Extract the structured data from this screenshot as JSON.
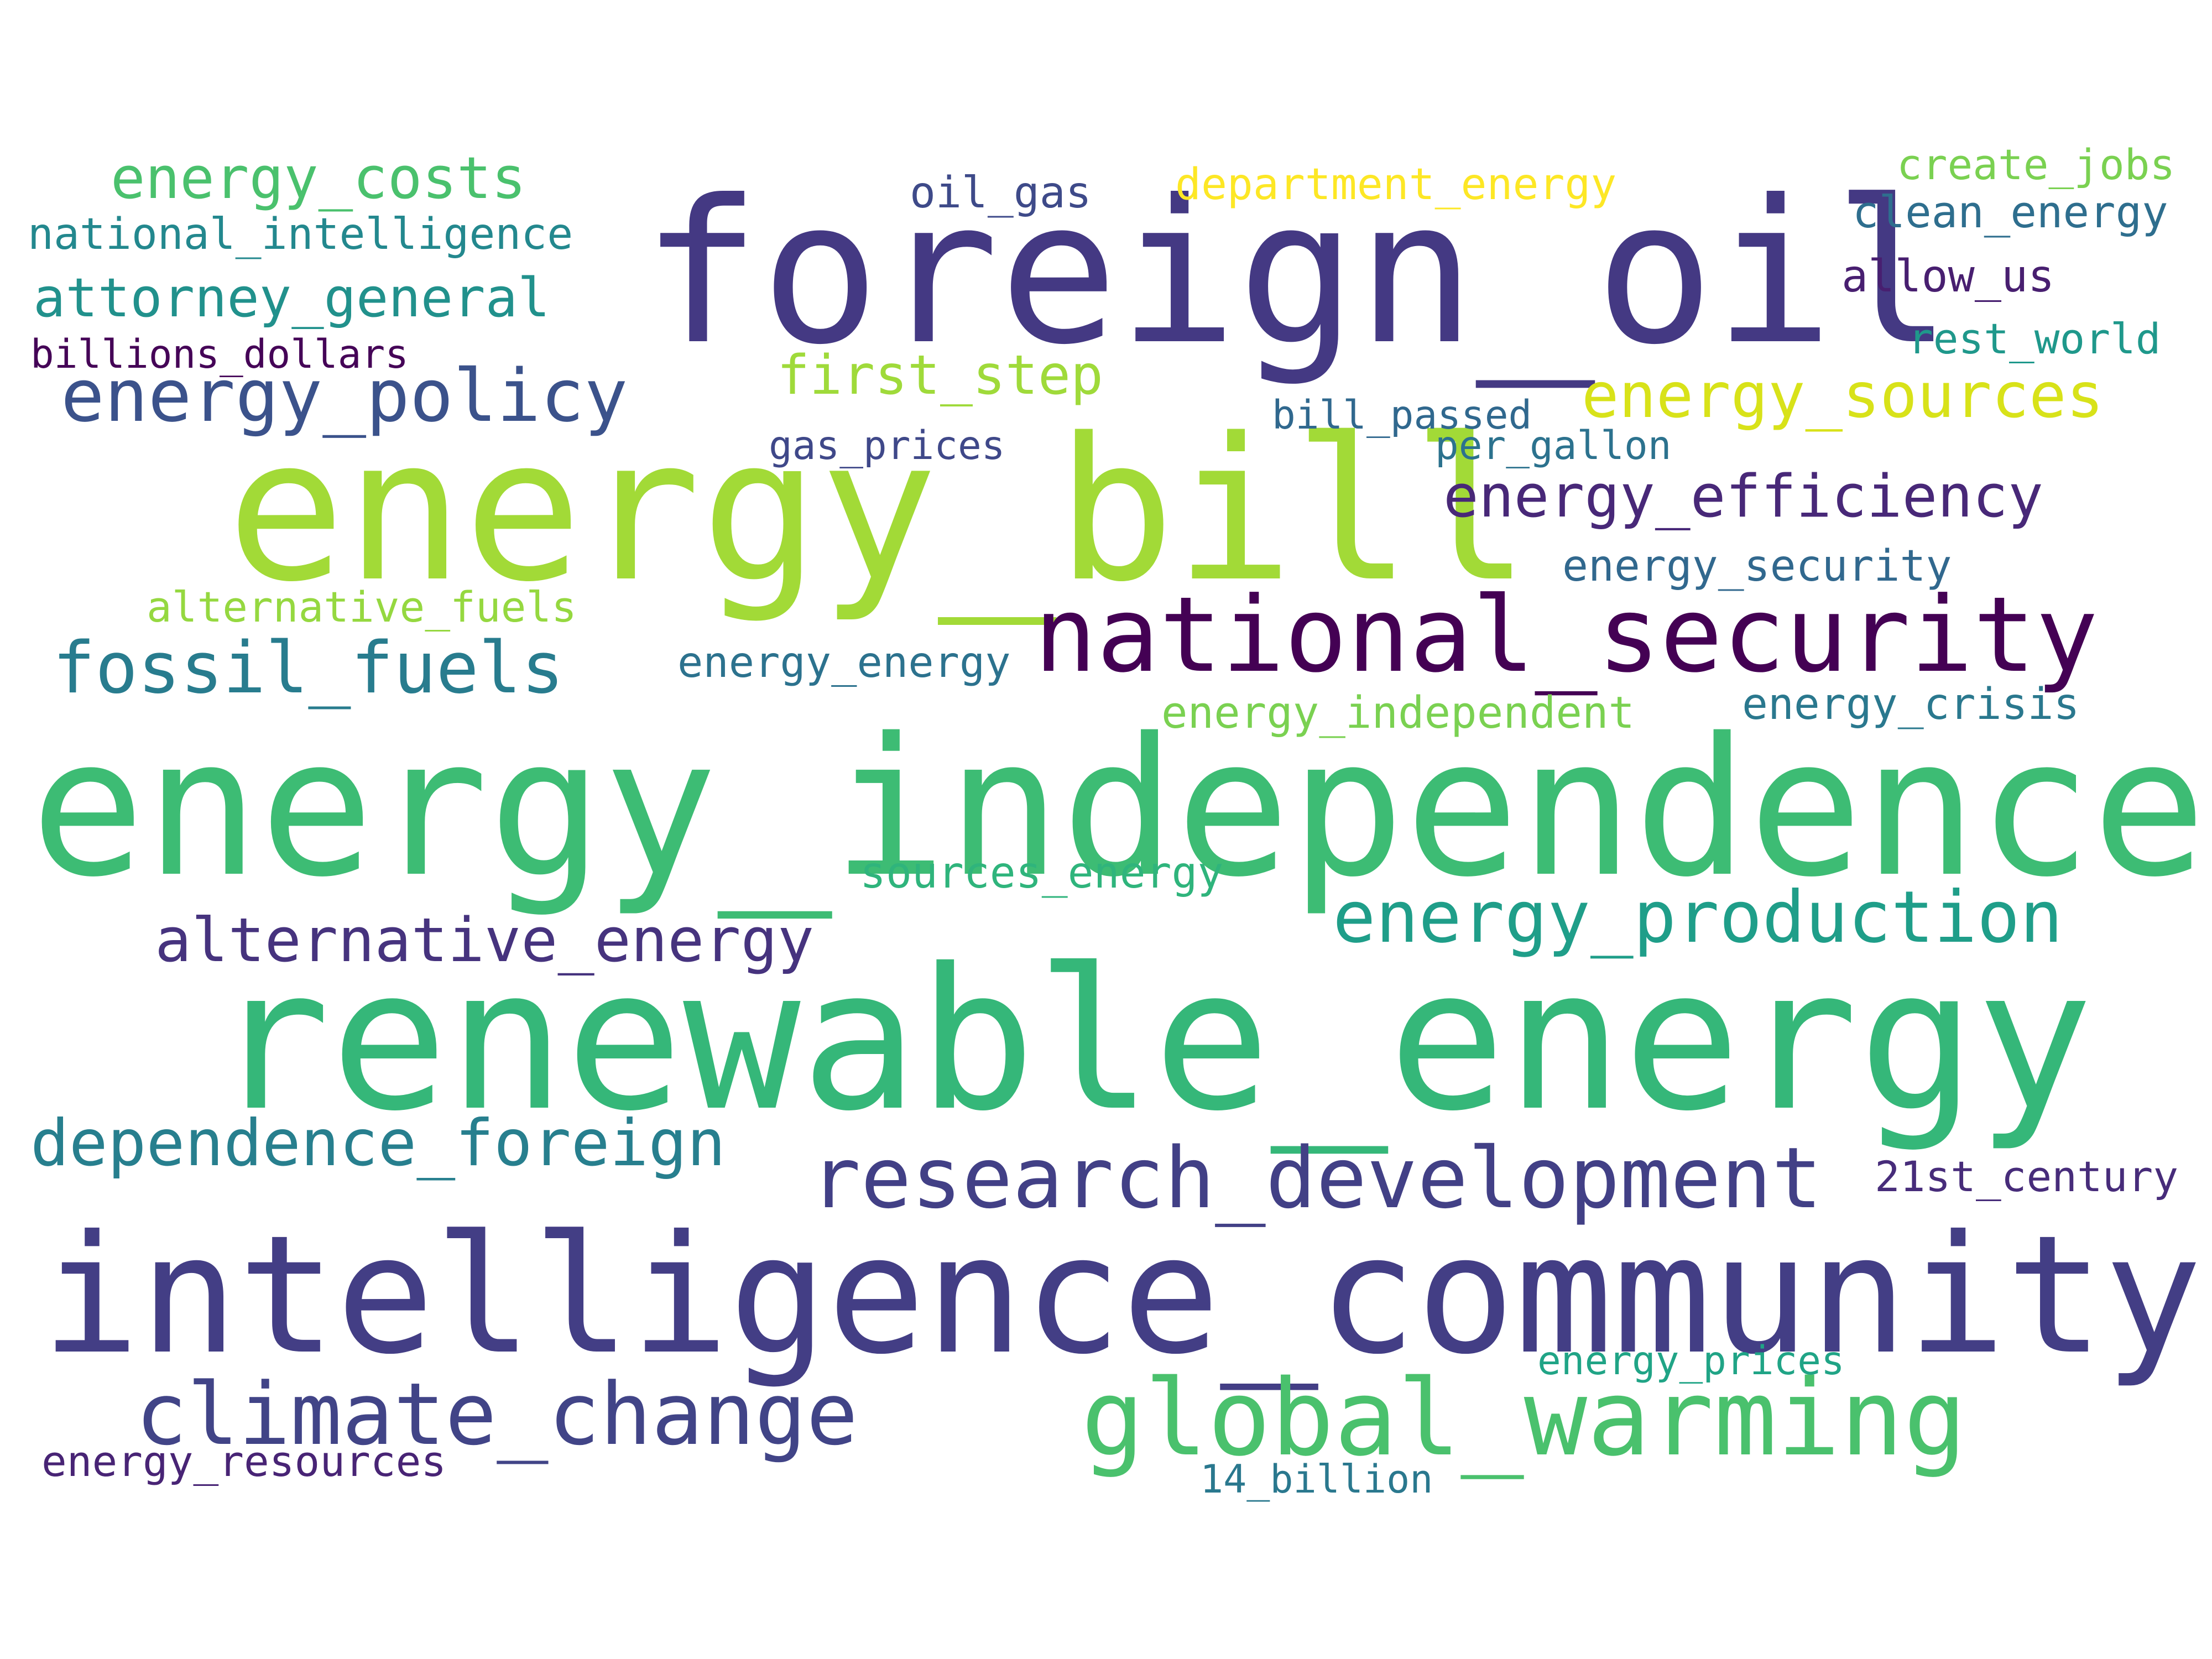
{
  "words": [
    {
      "text": "foreign_oil",
      "color": "#443983"
    },
    {
      "text": "energy_bill",
      "color": "#a2da37"
    },
    {
      "text": "energy_independence",
      "color": "#3dbc74"
    },
    {
      "text": "renewable_energy",
      "color": "#35b779"
    },
    {
      "text": "intelligence_community",
      "color": "#433e85"
    },
    {
      "text": "national_security",
      "color": "#440154"
    },
    {
      "text": "global_warming",
      "color": "#4ac16d"
    },
    {
      "text": "research_development",
      "color": "#424086"
    },
    {
      "text": "climate_change",
      "color": "#414487"
    },
    {
      "text": "energy_production",
      "color": "#1f9e89"
    },
    {
      "text": "energy_policy",
      "color": "#3b528b"
    },
    {
      "text": "fossil_fuels",
      "color": "#287c8e"
    },
    {
      "text": "dependence_foreign",
      "color": "#277f8e"
    },
    {
      "text": "alternative_energy",
      "color": "#46337e"
    },
    {
      "text": "energy_efficiency",
      "color": "#482878"
    },
    {
      "text": "energy_sources",
      "color": "#d8e219"
    },
    {
      "text": "energy_costs",
      "color": "#4ac16d"
    },
    {
      "text": "attorney_general",
      "color": "#21918c"
    },
    {
      "text": "first_step",
      "color": "#9fda3a"
    },
    {
      "text": "department_energy",
      "color": "#fde725"
    },
    {
      "text": "clean_energy",
      "color": "#2e6e8e"
    },
    {
      "text": "allow_us",
      "color": "#481f70"
    },
    {
      "text": "rest_world",
      "color": "#1f988b"
    },
    {
      "text": "create_jobs",
      "color": "#7ad151"
    },
    {
      "text": "oil_gas",
      "color": "#3e4a89"
    },
    {
      "text": "energy_security",
      "color": "#31688e"
    },
    {
      "text": "energy_crisis",
      "color": "#2a788e"
    },
    {
      "text": "energy_independent",
      "color": "#7ad151"
    },
    {
      "text": "energy_energy",
      "color": "#2c728e"
    },
    {
      "text": "alternative_fuels",
      "color": "#95d840"
    },
    {
      "text": "national_intelligence",
      "color": "#23888e"
    },
    {
      "text": "sources_energy",
      "color": "#2fb47c"
    },
    {
      "text": "21st_century",
      "color": "#472c7a"
    },
    {
      "text": "energy_prices",
      "color": "#20a486"
    },
    {
      "text": "energy_resources",
      "color": "#482475"
    },
    {
      "text": "bill_passed",
      "color": "#30688e"
    },
    {
      "text": "gas_prices",
      "color": "#3f4889"
    },
    {
      "text": "per_gallon",
      "color": "#2c728e"
    },
    {
      "text": "billions_dollars",
      "color": "#450457"
    },
    {
      "text": "14_billion",
      "color": "#2a788e"
    }
  ]
}
